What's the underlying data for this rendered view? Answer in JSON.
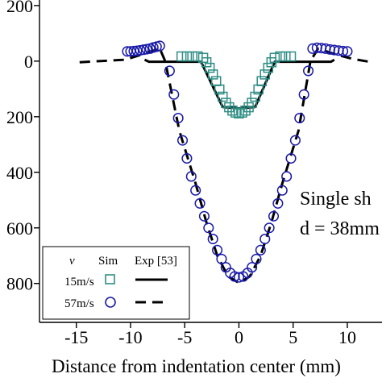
{
  "chart_data": {
    "type": "line",
    "xlabel": "Distance from indentation center  (mm)",
    "ylabel": "",
    "xlim": [
      -18.4,
      13.2
    ],
    "ylim": [
      -940,
      220
    ],
    "x_ticks": [
      -15,
      -10,
      -5,
      0,
      5,
      10
    ],
    "y_ticks": [
      200,
      0,
      -200,
      -400,
      -600,
      -800
    ],
    "y_tick_labels": [
      "200",
      "0",
      "200",
      "400",
      "600",
      "800"
    ],
    "annotation": [
      "Single sh",
      "d = 38mm"
    ],
    "legend": {
      "header_v": "v",
      "header_sim": "Sim",
      "header_exp": "Exp [53]",
      "rows": [
        "15m/s",
        "57m/s"
      ]
    },
    "series": [
      {
        "name": "15m/s Exp",
        "style": "solid",
        "color": "#000000",
        "points": [
          [
            -8.7,
            5
          ],
          [
            -8.3,
            -2
          ],
          [
            -3.5,
            -2
          ],
          [
            -1.5,
            -165
          ],
          [
            0,
            -170
          ],
          [
            1.5,
            -165
          ],
          [
            3.3,
            -2
          ],
          [
            8.5,
            -2
          ],
          [
            8.8,
            5
          ]
        ]
      },
      {
        "name": "57m/s Exp",
        "style": "dashed",
        "color": "#000000",
        "points": [
          [
            -14.7,
            -4
          ],
          [
            -10.5,
            5
          ],
          [
            -9,
            23
          ],
          [
            -7.3,
            45
          ],
          [
            -6.8,
            0
          ],
          [
            -5.5,
            -250
          ],
          [
            -4,
            -440
          ],
          [
            -3,
            -580
          ],
          [
            -2,
            -700
          ],
          [
            -1,
            -775
          ],
          [
            0,
            -798
          ],
          [
            1,
            -775
          ],
          [
            2,
            -700
          ],
          [
            3,
            -580
          ],
          [
            4,
            -440
          ],
          [
            5.5,
            -250
          ],
          [
            6.6,
            0
          ],
          [
            7.3,
            45
          ],
          [
            9,
            23
          ],
          [
            10.5,
            8
          ],
          [
            12,
            -2
          ]
        ]
      },
      {
        "name": "15m/s Sim",
        "marker": "square",
        "color": "#2f8e85",
        "points": [
          [
            -5.3,
            17
          ],
          [
            -4.8,
            17
          ],
          [
            -4.3,
            17
          ],
          [
            -3.8,
            17
          ],
          [
            -3.3,
            12
          ],
          [
            -3.0,
            -4
          ],
          [
            -2.7,
            -24
          ],
          [
            -2.4,
            -48
          ],
          [
            -2.1,
            -72
          ],
          [
            -1.8,
            -102
          ],
          [
            -1.5,
            -128
          ],
          [
            -1.2,
            -150
          ],
          [
            -0.9,
            -166
          ],
          [
            -0.6,
            -178
          ],
          [
            -0.3,
            -185
          ],
          [
            0,
            -188
          ],
          [
            0.3,
            -185
          ],
          [
            0.6,
            -178
          ],
          [
            0.9,
            -166
          ],
          [
            1.2,
            -150
          ],
          [
            1.5,
            -128
          ],
          [
            1.8,
            -102
          ],
          [
            2.1,
            -72
          ],
          [
            2.4,
            -48
          ],
          [
            2.7,
            -24
          ],
          [
            3.0,
            -4
          ],
          [
            3.3,
            12
          ],
          [
            3.8,
            17
          ],
          [
            4.3,
            17
          ],
          [
            4.8,
            17
          ]
        ]
      },
      {
        "name": "57m/s Sim",
        "marker": "circle",
        "color": "#1a1aa8",
        "points": [
          [
            -10.3,
            35
          ],
          [
            -10.0,
            35
          ],
          [
            -9.7,
            36
          ],
          [
            -9.4,
            37
          ],
          [
            -9.1,
            39
          ],
          [
            -8.8,
            41
          ],
          [
            -8.5,
            43
          ],
          [
            -8.2,
            45
          ],
          [
            -7.9,
            49
          ],
          [
            -7.6,
            52
          ],
          [
            -7.3,
            55
          ],
          [
            -6.4,
            -35
          ],
          [
            -6.0,
            -120
          ],
          [
            -5.6,
            -205
          ],
          [
            -5.2,
            -285
          ],
          [
            -4.8,
            -350
          ],
          [
            -4.4,
            -415
          ],
          [
            -4.0,
            -465
          ],
          [
            -3.6,
            -512
          ],
          [
            -3.2,
            -558
          ],
          [
            -2.8,
            -600
          ],
          [
            -2.4,
            -640
          ],
          [
            -2.0,
            -680
          ],
          [
            -1.6,
            -712
          ],
          [
            -1.2,
            -742
          ],
          [
            -0.8,
            -762
          ],
          [
            -0.4,
            -775
          ],
          [
            0,
            -778
          ],
          [
            0.4,
            -775
          ],
          [
            0.8,
            -762
          ],
          [
            1.2,
            -742
          ],
          [
            1.6,
            -712
          ],
          [
            2.0,
            -680
          ],
          [
            2.4,
            -640
          ],
          [
            2.8,
            -600
          ],
          [
            3.2,
            -558
          ],
          [
            3.6,
            -512
          ],
          [
            4.0,
            -465
          ],
          [
            4.4,
            -415
          ],
          [
            4.8,
            -350
          ],
          [
            5.2,
            -285
          ],
          [
            5.6,
            -205
          ],
          [
            6.0,
            -120
          ],
          [
            6.4,
            -35
          ],
          [
            6.8,
            45
          ],
          [
            7.2,
            48
          ],
          [
            7.6,
            47
          ],
          [
            8.0,
            45
          ],
          [
            8.4,
            42
          ],
          [
            8.8,
            40
          ],
          [
            9.2,
            38
          ],
          [
            9.6,
            36
          ],
          [
            10.0,
            35
          ]
        ]
      }
    ]
  }
}
